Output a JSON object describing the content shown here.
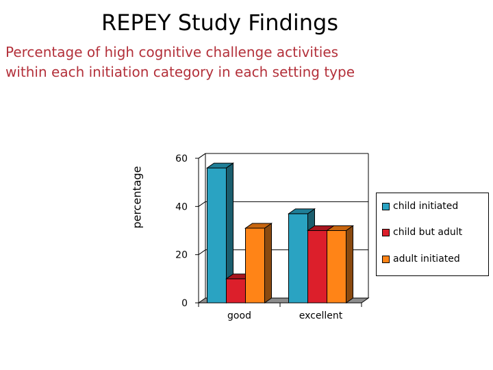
{
  "slide": {
    "title": "REPEY Study Findings",
    "subtitle_line1": "Percentage of high cognitive challenge activities",
    "subtitle_line2": "within each initiation category in each setting type"
  },
  "colors": {
    "title": "#000000",
    "subtitle": "#b3303a"
  },
  "chart_data": {
    "type": "bar",
    "style": "3d-clustered-column",
    "categories": [
      "good",
      "excellent"
    ],
    "series": [
      {
        "name": "child initiated",
        "values": [
          56,
          37
        ],
        "color": "#2aa3c2",
        "side": "#1b5e6e",
        "top": "#1f7f98"
      },
      {
        "name": "child but adult",
        "values": [
          10,
          30
        ],
        "color": "#dc1f2b",
        "side": "#7a1016",
        "top": "#a8161f"
      },
      {
        "name": "adult initiated",
        "values": [
          31,
          30
        ],
        "color": "#ff8417",
        "side": "#8a4a10",
        "top": "#c7650f"
      }
    ],
    "ylabel": "percentage",
    "xlabel": "",
    "ylim": [
      0,
      60
    ],
    "yticks": [
      0,
      20,
      40,
      60
    ],
    "grid": true,
    "legend_position": "right"
  }
}
